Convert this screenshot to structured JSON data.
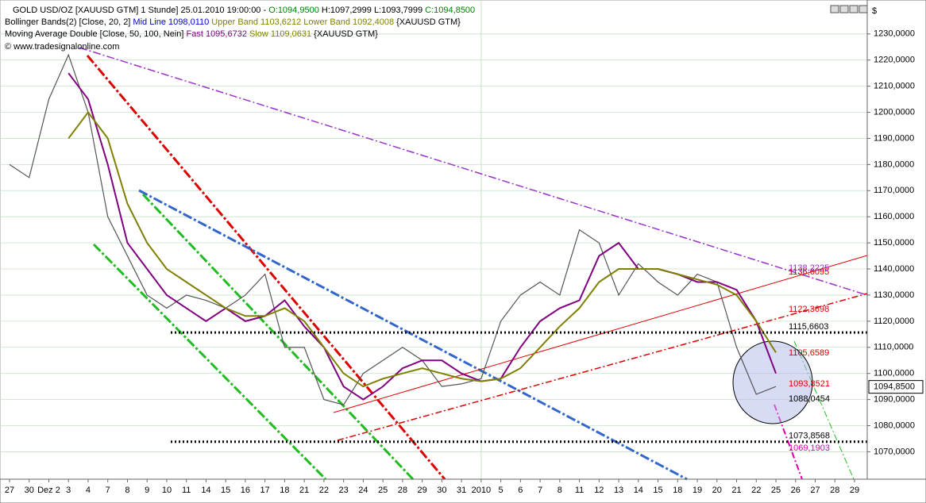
{
  "chart_data": {
    "type": "line",
    "header": [
      [
        {
          "text": "GOLD USD/OZ [XAUUSD GTM]  1 Stunde] 25.01.2010 19:00:00 - ",
          "color": "#000000"
        },
        {
          "text": "O:1094,9500",
          "color": "#008000"
        },
        {
          "text": " H:1097,2999 L:1093,7999 ",
          "color": "#000000"
        },
        {
          "text": "C:1094,8500",
          "color": "#008000"
        }
      ],
      [
        {
          "text": "Bollinger Bands(2) [Close, 20, 2] ",
          "color": "#000000"
        },
        {
          "text": "Mid Line 1098,0110 ",
          "color": "#0000cc"
        },
        {
          "text": "Upper Band 1103,6212 Lower Band 1092,4008 ",
          "color": "#808000"
        },
        {
          "text": "{XAUUSD GTM}",
          "color": "#000000"
        }
      ],
      [
        {
          "text": "Moving Average Double [Close, 50, 100, Nein] ",
          "color": "#000000"
        },
        {
          "text": "Fast 1095,6732 ",
          "color": "#800080"
        },
        {
          "text": "Slow 1109,0631 ",
          "color": "#808000"
        },
        {
          "text": "{XAUUSD GTM}",
          "color": "#000000"
        }
      ]
    ],
    "copyright": "© www.tradesignalonline.com",
    "currency": "$",
    "categories": [
      "27",
      "30",
      "Dez 2",
      "3",
      "4",
      "7",
      "8",
      "9",
      "10",
      "11",
      "14",
      "15",
      "16",
      "17",
      "18",
      "21",
      "22",
      "23",
      "24",
      "25",
      "28",
      "29",
      "30",
      "31",
      "2010",
      "5",
      "6",
      "7",
      "8",
      "11",
      "12",
      "13",
      "14",
      "15",
      "18",
      "19",
      "20",
      "21",
      "22",
      "25",
      "26",
      "27",
      "28",
      "29"
    ],
    "series": [
      {
        "name": "Close",
        "color": "#555555",
        "values": [
          1180,
          1175,
          1205,
          1222,
          1200,
          1160,
          1145,
          1130,
          1125,
          1130,
          1128,
          1125,
          1130,
          1138,
          1110,
          1110,
          1090,
          1088,
          1100,
          1105,
          1110,
          1105,
          1095,
          1096,
          1098,
          1120,
          1130,
          1135,
          1130,
          1155,
          1150,
          1130,
          1142,
          1135,
          1130,
          1138,
          1135,
          1110,
          1092,
          1095,
          null,
          null,
          null,
          null
        ]
      },
      {
        "name": "Fast",
        "color": "#800080",
        "values": [
          null,
          null,
          null,
          1215,
          1205,
          1180,
          1150,
          1140,
          1130,
          1125,
          1120,
          1125,
          1120,
          1122,
          1128,
          1118,
          1110,
          1095,
          1090,
          1095,
          1102,
          1105,
          1105,
          1100,
          1097,
          1098,
          1110,
          1120,
          1125,
          1128,
          1145,
          1150,
          1140,
          1140,
          1138,
          1135,
          1135,
          1132,
          1120,
          1100,
          null,
          null,
          null,
          null
        ]
      },
      {
        "name": "Slow",
        "color": "#808000",
        "values": [
          null,
          null,
          null,
          1190,
          1200,
          1190,
          1165,
          1150,
          1140,
          1135,
          1130,
          1125,
          1122,
          1122,
          1125,
          1120,
          1110,
          1100,
          1095,
          1098,
          1100,
          1102,
          1100,
          1098,
          1097,
          1098,
          1102,
          1110,
          1118,
          1125,
          1135,
          1140,
          1140,
          1140,
          1138,
          1136,
          1134,
          1130,
          1120,
          1108,
          null,
          null,
          null,
          null
        ]
      }
    ],
    "ylim": [
      1059.5,
      1243
    ],
    "yticks": [
      {
        "value": 1070,
        "label": "1070,0000"
      },
      {
        "value": 1080,
        "label": "1080,0000"
      },
      {
        "value": 1090,
        "label": "1090,0000"
      },
      {
        "value": 1100,
        "label": "1100,0000"
      },
      {
        "value": 1110,
        "label": "1110,0000"
      },
      {
        "value": 1120,
        "label": "1120,0000"
      },
      {
        "value": 1130,
        "label": "1130,0000"
      },
      {
        "value": 1140,
        "label": "1140,0000"
      },
      {
        "value": 1150,
        "label": "1150,0000"
      },
      {
        "value": 1160,
        "label": "1160,0000"
      },
      {
        "value": 1170,
        "label": "1170,0000"
      },
      {
        "value": 1180,
        "label": "1180,0000"
      },
      {
        "value": 1190,
        "label": "1190,0000"
      },
      {
        "value": 1200,
        "label": "1200,0000"
      },
      {
        "value": 1210,
        "label": "1210,0000"
      },
      {
        "value": 1220,
        "label": "1220,0000"
      },
      {
        "value": 1230,
        "label": "1230,0000"
      }
    ],
    "grid": true,
    "levels": [
      {
        "value": 1138.2225,
        "label": "1138,2225",
        "color": "#9933cc",
        "dotted": false
      },
      {
        "value": 1136.6095,
        "label": "1136,6095",
        "color": "#dd0000",
        "dotted": false
      },
      {
        "value": 1122.3698,
        "label": "1122,3698",
        "color": "#dd0000",
        "dotted": false
      },
      {
        "value": 1115.6603,
        "label": "1115,6603",
        "color": "#000000",
        "dotted": true
      },
      {
        "value": 1105.6589,
        "label": "1105,6589",
        "color": "#dd0000",
        "dotted": false
      },
      {
        "value": 1093.8521,
        "label": "1093,8521",
        "color": "#dd0000",
        "dotted": false
      },
      {
        "value": 1088.0454,
        "label": "1088,0454",
        "color": "#000000",
        "dotted": false
      },
      {
        "value": 1073.8568,
        "label": "1073,8568",
        "color": "#000000",
        "dotted": true
      },
      {
        "value": 1069.1903,
        "label": "1069,1903",
        "color": "#dd00aa",
        "dotted": false
      }
    ],
    "last": {
      "value": 1094.85,
      "label": "1094,8500"
    }
  }
}
